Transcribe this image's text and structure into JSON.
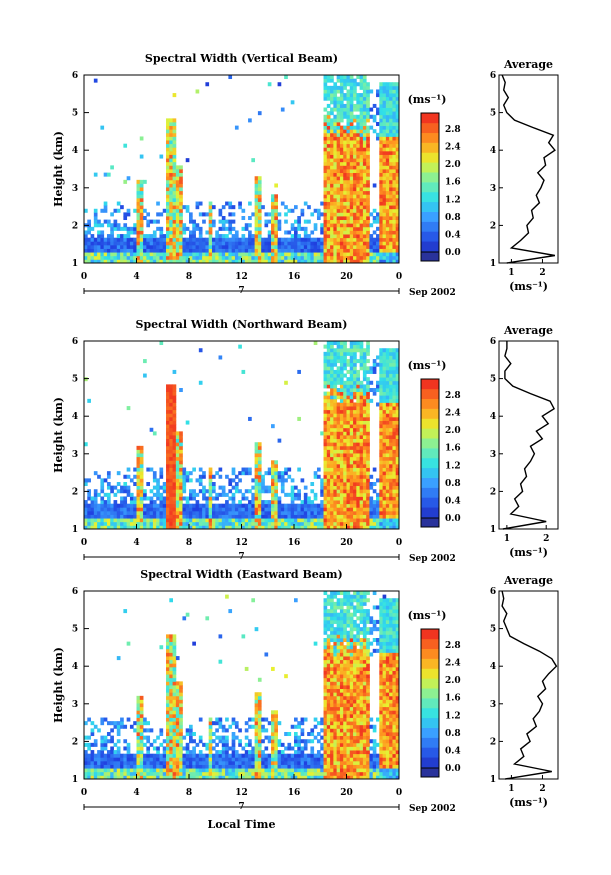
{
  "chart_data": [
    {
      "type": "heatmap",
      "title": "Spectral Width (Vertical Beam)",
      "xlabel": "",
      "ylabel": "Height (km)",
      "x_ticks": [
        "0",
        "4",
        "8",
        "12",
        "16",
        "20",
        "0"
      ],
      "date_marker": "7",
      "date_suffix": "Sep 2002",
      "y_ticks": [
        "1",
        "2",
        "3",
        "4",
        "5",
        "6"
      ],
      "x_range_hours": [
        0,
        24
      ],
      "y_range_km": [
        1,
        6
      ],
      "colorbar": {
        "unit": "(ms⁻¹)",
        "ticks": [
          "0.0",
          "0.4",
          "0.8",
          "1.2",
          "1.6",
          "2.0",
          "2.4",
          "2.8"
        ],
        "range": [
          0.0,
          3.0
        ]
      },
      "average_profile": {
        "title": "Average",
        "xlabel": "(ms⁻¹)",
        "x_ticks": [
          "1",
          "2"
        ],
        "x_range": [
          0.6,
          2.5
        ],
        "heights_km": [
          1.0,
          1.2,
          1.4,
          1.6,
          1.8,
          2.0,
          2.2,
          2.4,
          2.6,
          2.8,
          3.0,
          3.2,
          3.4,
          3.6,
          3.8,
          4.0,
          4.2,
          4.4,
          4.6,
          4.8,
          5.0,
          5.2,
          5.4,
          5.6,
          5.8,
          6.0
        ],
        "values_ms": [
          0.85,
          2.4,
          1.0,
          1.3,
          1.55,
          1.5,
          1.7,
          1.65,
          1.9,
          1.8,
          1.95,
          2.05,
          1.85,
          2.1,
          2.05,
          2.4,
          2.2,
          2.35,
          1.7,
          1.1,
          0.85,
          0.75,
          0.9,
          0.75,
          0.8,
          0.7
        ]
      }
    },
    {
      "type": "heatmap",
      "title": "Spectral Width (Northward Beam)",
      "xlabel": "",
      "ylabel": "Height (km)",
      "x_ticks": [
        "0",
        "4",
        "8",
        "12",
        "16",
        "20",
        "0"
      ],
      "date_marker": "7",
      "date_suffix": "Sep 2002",
      "y_ticks": [
        "1",
        "2",
        "3",
        "4",
        "5",
        "6"
      ],
      "x_range_hours": [
        0,
        24
      ],
      "y_range_km": [
        1,
        6
      ],
      "colorbar": {
        "unit": "(ms⁻¹)",
        "ticks": [
          "0.0",
          "0.4",
          "0.8",
          "1.2",
          "1.6",
          "2.0",
          "2.4",
          "2.8"
        ],
        "range": [
          0.0,
          3.0
        ]
      },
      "average_profile": {
        "title": "Average",
        "xlabel": "(ms⁻¹)",
        "x_ticks": [
          "1",
          "2"
        ],
        "x_range": [
          0.8,
          2.3
        ],
        "heights_km": [
          1.0,
          1.2,
          1.4,
          1.6,
          1.8,
          2.0,
          2.2,
          2.4,
          2.6,
          2.8,
          3.0,
          3.2,
          3.4,
          3.6,
          3.8,
          4.0,
          4.2,
          4.4,
          4.6,
          4.8,
          5.0,
          5.2,
          5.4,
          5.6,
          5.8,
          6.0
        ],
        "values_ms": [
          0.9,
          2.0,
          1.1,
          1.3,
          1.2,
          1.4,
          1.35,
          1.5,
          1.45,
          1.6,
          1.7,
          1.6,
          1.9,
          1.75,
          2.05,
          1.9,
          2.2,
          2.1,
          1.6,
          1.15,
          0.95,
          0.95,
          1.1,
          0.95,
          1.0,
          1.0
        ]
      }
    },
    {
      "type": "heatmap",
      "title": "Spectral Width (Eastward Beam)",
      "xlabel": "Local Time",
      "ylabel": "Height (km)",
      "x_ticks": [
        "0",
        "4",
        "8",
        "12",
        "16",
        "20",
        "0"
      ],
      "date_marker": "7",
      "date_suffix": "Sep 2002",
      "y_ticks": [
        "1",
        "2",
        "3",
        "4",
        "5",
        "6"
      ],
      "x_range_hours": [
        0,
        24
      ],
      "y_range_km": [
        1,
        6
      ],
      "colorbar": {
        "unit": "(ms⁻¹)",
        "ticks": [
          "0.0",
          "0.4",
          "0.8",
          "1.2",
          "1.6",
          "2.0",
          "2.4",
          "2.8"
        ],
        "range": [
          0.0,
          3.0
        ]
      },
      "average_profile": {
        "title": "Average",
        "xlabel": "(ms⁻¹)",
        "x_ticks": [
          "1",
          "2"
        ],
        "x_range": [
          0.6,
          2.5
        ],
        "heights_km": [
          1.0,
          1.2,
          1.4,
          1.6,
          1.8,
          2.0,
          2.2,
          2.4,
          2.6,
          2.8,
          3.0,
          3.2,
          3.4,
          3.6,
          3.8,
          4.0,
          4.2,
          4.4,
          4.6,
          4.8,
          5.0,
          5.2,
          5.4,
          5.6,
          5.8,
          6.0
        ],
        "values_ms": [
          0.8,
          2.3,
          1.1,
          1.4,
          1.3,
          1.6,
          1.5,
          1.8,
          1.7,
          1.9,
          2.0,
          1.85,
          2.1,
          2.0,
          2.2,
          2.45,
          2.3,
          1.9,
          1.4,
          0.95,
          0.85,
          0.75,
          0.85,
          0.7,
          0.75,
          0.7
        ]
      }
    }
  ]
}
